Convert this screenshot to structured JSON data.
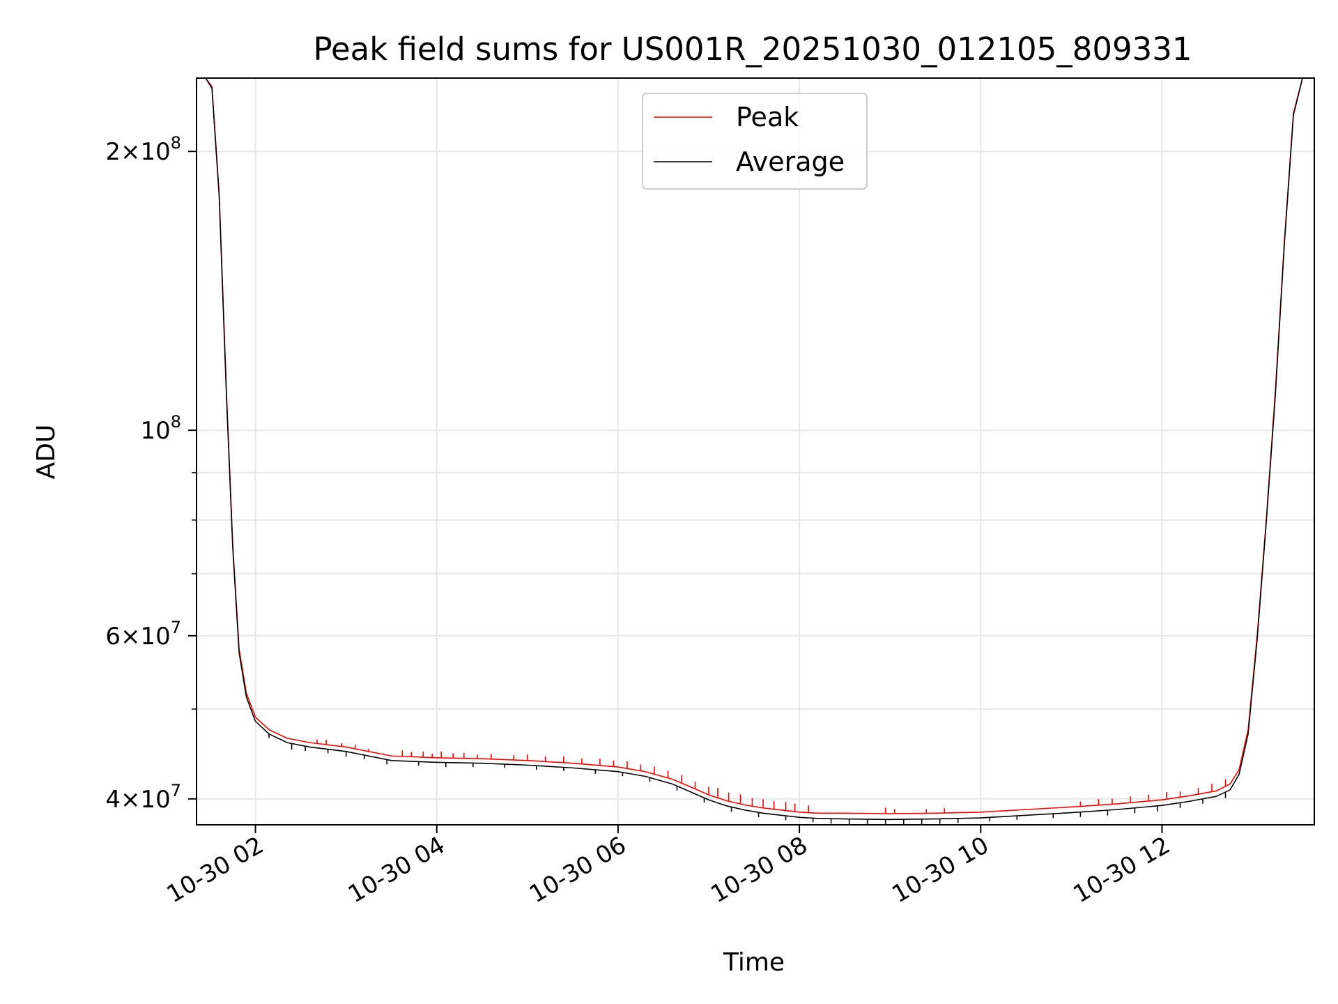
{
  "chart_data": {
    "type": "line",
    "title": "Peak field sums for US001R_20251030_012105_809331",
    "xlabel": "Time",
    "ylabel": "ADU",
    "yscale": "log",
    "grid": true,
    "legend_position": "upper-center",
    "x_unit": "hours since 2025-10-30 00:00",
    "xlim": [
      1.35,
      13.68
    ],
    "ylim": [
      37500000,
      240000000
    ],
    "x_ticks": [
      {
        "value": 2,
        "label": "10-30 02"
      },
      {
        "value": 4,
        "label": "10-30 04"
      },
      {
        "value": 6,
        "label": "10-30 06"
      },
      {
        "value": 8,
        "label": "10-30 08"
      },
      {
        "value": 10,
        "label": "10-30 10"
      },
      {
        "value": 12,
        "label": "10-30 12"
      }
    ],
    "y_major_ticks": [
      {
        "value": 40000000,
        "mantissa": "4",
        "exponent": "7"
      },
      {
        "value": 60000000,
        "mantissa": "6",
        "exponent": "7"
      },
      {
        "value": 100000000,
        "mantissa": "",
        "exponent": "8"
      },
      {
        "value": 200000000,
        "mantissa": "2",
        "exponent": "8"
      }
    ],
    "y_minor_ticks": [
      50000000,
      70000000,
      80000000,
      90000000
    ],
    "series": [
      {
        "name": "Peak",
        "color": "#ff0000",
        "x": [
          1.45,
          1.52,
          1.6,
          1.68,
          1.75,
          1.82,
          1.9,
          2.0,
          2.15,
          2.35,
          2.6,
          3.0,
          3.5,
          4.0,
          4.5,
          5.0,
          5.5,
          6.0,
          6.3,
          6.6,
          6.8,
          7.0,
          7.2,
          7.4,
          7.6,
          7.8,
          8.0,
          8.2,
          8.5,
          9.0,
          9.5,
          10.0,
          10.5,
          11.0,
          11.5,
          12.0,
          12.3,
          12.6,
          12.75,
          12.85,
          12.95,
          13.05,
          13.15,
          13.25,
          13.35,
          13.45,
          13.55,
          13.68
        ],
        "y": [
          240000000,
          235000000,
          180000000,
          110000000,
          75000000,
          58000000,
          52000000,
          49000000,
          47500000,
          46500000,
          46000000,
          45500000,
          44500000,
          44300000,
          44200000,
          44000000,
          43700000,
          43300000,
          42800000,
          42000000,
          41200000,
          40400000,
          39800000,
          39400000,
          39100000,
          38900000,
          38700000,
          38600000,
          38600000,
          38550000,
          38600000,
          38700000,
          38950000,
          39200000,
          39500000,
          39900000,
          40300000,
          40800000,
          41500000,
          43000000,
          47500000,
          60000000,
          80000000,
          110000000,
          160000000,
          220000000,
          240000000,
          240000000
        ],
        "spikes": [
          [
            2.68,
            1.01
          ],
          [
            2.78,
            1.012
          ],
          [
            2.95,
            1.008
          ],
          [
            3.1,
            1.01
          ],
          [
            3.25,
            1.007
          ],
          [
            3.62,
            1.015
          ],
          [
            3.72,
            1.012
          ],
          [
            3.85,
            1.014
          ],
          [
            3.95,
            1.01
          ],
          [
            4.05,
            1.016
          ],
          [
            4.18,
            1.012
          ],
          [
            4.3,
            1.014
          ],
          [
            4.45,
            1.01
          ],
          [
            4.6,
            1.013
          ],
          [
            4.85,
            1.012
          ],
          [
            5.0,
            1.015
          ],
          [
            5.2,
            1.013
          ],
          [
            5.4,
            1.016
          ],
          [
            5.6,
            1.014
          ],
          [
            5.8,
            1.017
          ],
          [
            5.95,
            1.015
          ],
          [
            6.1,
            1.018
          ],
          [
            6.25,
            1.016
          ],
          [
            6.4,
            1.019
          ],
          [
            6.55,
            1.018
          ],
          [
            6.7,
            1.02
          ],
          [
            6.85,
            1.018
          ],
          [
            7.0,
            1.02
          ],
          [
            7.1,
            1.025
          ],
          [
            7.22,
            1.022
          ],
          [
            7.35,
            1.024
          ],
          [
            7.48,
            1.02
          ],
          [
            7.6,
            1.022
          ],
          [
            7.72,
            1.02
          ],
          [
            7.85,
            1.022
          ],
          [
            7.95,
            1.02
          ],
          [
            8.1,
            1.018
          ],
          [
            8.95,
            1.015
          ],
          [
            9.05,
            1.012
          ],
          [
            9.4,
            1.01
          ],
          [
            9.6,
            1.012
          ],
          [
            11.1,
            1.012
          ],
          [
            11.3,
            1.015
          ],
          [
            11.45,
            1.014
          ],
          [
            11.65,
            1.016
          ],
          [
            11.85,
            1.016
          ],
          [
            12.05,
            1.018
          ],
          [
            12.2,
            1.014
          ],
          [
            12.4,
            1.016
          ],
          [
            12.55,
            1.02
          ],
          [
            12.7,
            1.018
          ]
        ]
      },
      {
        "name": "Average",
        "color": "#000000",
        "x": [
          1.45,
          1.52,
          1.6,
          1.68,
          1.75,
          1.82,
          1.9,
          2.0,
          2.15,
          2.35,
          2.6,
          3.0,
          3.5,
          4.0,
          4.5,
          5.0,
          5.5,
          6.0,
          6.3,
          6.6,
          6.8,
          7.0,
          7.2,
          7.4,
          7.6,
          7.8,
          8.0,
          8.2,
          8.5,
          9.0,
          9.5,
          10.0,
          10.5,
          11.0,
          11.5,
          12.0,
          12.3,
          12.6,
          12.75,
          12.85,
          12.95,
          13.05,
          13.15,
          13.25,
          13.35,
          13.45,
          13.55,
          13.68
        ],
        "y": [
          240000000,
          234000000,
          179000000,
          109000000,
          74500000,
          57500000,
          51500000,
          48500000,
          47000000,
          46000000,
          45500000,
          45000000,
          44000000,
          43800000,
          43700000,
          43500000,
          43200000,
          42800000,
          42300000,
          41500000,
          40700000,
          39900000,
          39300000,
          38900000,
          38600000,
          38400000,
          38200000,
          38100000,
          38050000,
          38000000,
          38050000,
          38150000,
          38400000,
          38650000,
          38950000,
          39350000,
          39750000,
          40250000,
          40900000,
          42500000,
          47000000,
          59500000,
          79500000,
          109000000,
          159000000,
          219000000,
          240000000,
          240000000
        ],
        "dips": [
          [
            2.15,
            0.99
          ],
          [
            2.4,
            0.985
          ],
          [
            2.55,
            0.988
          ],
          [
            2.8,
            0.99
          ],
          [
            3.0,
            0.987
          ],
          [
            3.2,
            0.99
          ],
          [
            3.45,
            0.988
          ],
          [
            3.8,
            0.99
          ],
          [
            4.1,
            0.989
          ],
          [
            4.4,
            0.99
          ],
          [
            4.75,
            0.991
          ],
          [
            5.1,
            0.99
          ],
          [
            5.4,
            0.991
          ],
          [
            5.75,
            0.99
          ],
          [
            6.05,
            0.991
          ],
          [
            6.35,
            0.99
          ],
          [
            6.65,
            0.989
          ],
          [
            6.95,
            0.988
          ],
          [
            7.25,
            0.988
          ],
          [
            7.55,
            0.988
          ],
          [
            7.85,
            0.989
          ],
          [
            8.15,
            0.99
          ],
          [
            8.35,
            0.988
          ],
          [
            8.55,
            0.987
          ],
          [
            8.75,
            0.988
          ],
          [
            8.95,
            0.986
          ],
          [
            9.15,
            0.985
          ],
          [
            9.35,
            0.987
          ],
          [
            9.55,
            0.988
          ],
          [
            9.75,
            0.989
          ],
          [
            10.1,
            0.99
          ],
          [
            10.4,
            0.99
          ],
          [
            10.8,
            0.989
          ],
          [
            11.1,
            0.988
          ],
          [
            11.4,
            0.987
          ],
          [
            11.7,
            0.987
          ],
          [
            11.95,
            0.986
          ],
          [
            12.2,
            0.987
          ],
          [
            12.45,
            0.988
          ],
          [
            12.7,
            0.985
          ]
        ]
      }
    ]
  }
}
